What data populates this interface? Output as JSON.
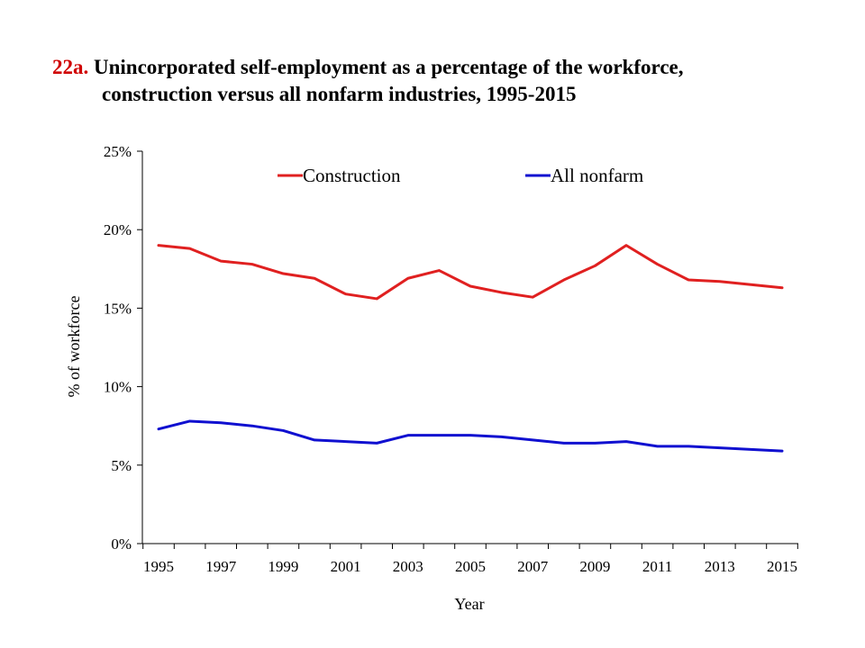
{
  "header": {
    "number": "22a.",
    "line1": "Unincorporated self-employment as a percentage of the workforce,",
    "line2": "construction versus all nonfarm industries, 1995-2015"
  },
  "chart_data": {
    "type": "line",
    "xlabel": "Year",
    "ylabel": "% of workforce",
    "ylim": [
      0,
      25
    ],
    "yticks": [
      "0%",
      "5%",
      "10%",
      "15%",
      "20%",
      "25%"
    ],
    "xticks": [
      "1995",
      "1997",
      "1999",
      "2001",
      "2003",
      "2005",
      "2007",
      "2009",
      "2011",
      "2013",
      "2015"
    ],
    "x": [
      1995,
      1996,
      1997,
      1998,
      1999,
      2000,
      2001,
      2002,
      2003,
      2004,
      2005,
      2006,
      2007,
      2008,
      2009,
      2010,
      2011,
      2012,
      2013,
      2014,
      2015
    ],
    "legend_position": "top",
    "grid": false,
    "series": [
      {
        "name": "Construction",
        "color": "#e02020",
        "values": [
          19.0,
          18.8,
          18.0,
          17.8,
          17.2,
          16.9,
          15.9,
          15.6,
          16.9,
          17.4,
          16.4,
          16.0,
          15.7,
          16.8,
          17.7,
          19.0,
          17.8,
          16.8,
          16.7,
          16.5,
          16.3
        ]
      },
      {
        "name": "All nonfarm",
        "color": "#1010d0",
        "values": [
          7.3,
          7.8,
          7.7,
          7.5,
          7.2,
          6.6,
          6.5,
          6.4,
          6.9,
          6.9,
          6.9,
          6.8,
          6.6,
          6.4,
          6.4,
          6.5,
          6.2,
          6.2,
          6.1,
          6.0,
          5.9
        ]
      }
    ]
  }
}
